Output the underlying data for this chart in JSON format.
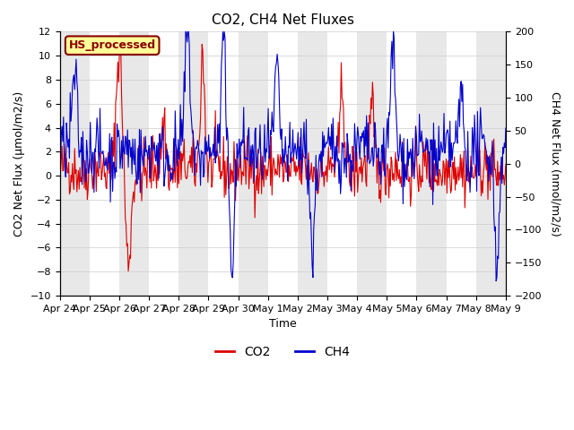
{
  "title": "CO2, CH4 Net Fluxes",
  "xlabel": "Time",
  "ylabel_left": "CO2 Net Flux (μmol/m2/s)",
  "ylabel_right": "CH4 Net Flux (nmol/m2/s)",
  "ylim_left": [
    -10,
    12
  ],
  "ylim_right": [
    -200,
    200
  ],
  "xtick_labels": [
    "Apr 24",
    "Apr 25",
    "Apr 26",
    "Apr 27",
    "Apr 28",
    "Apr 29",
    "Apr 30",
    "May 1",
    "May 2",
    "May 3",
    "May 4",
    "May 5",
    "May 6",
    "May 7",
    "May 8",
    "May 9"
  ],
  "yticks_left": [
    -10,
    -8,
    -6,
    -4,
    -2,
    0,
    2,
    4,
    6,
    8,
    10,
    12
  ],
  "yticks_right": [
    -200,
    -150,
    -100,
    -50,
    0,
    50,
    100,
    150,
    200
  ],
  "co2_color": "#dd0000",
  "ch4_color": "#0000cc",
  "background_color": "#ffffff",
  "band_color": "#e8e8e8",
  "label_box_facecolor": "#ffff99",
  "label_box_edgecolor": "#880000",
  "label_text": "HS_processed",
  "label_text_color": "#880000",
  "legend_co2": "CO2",
  "legend_ch4": "CH4",
  "seed": 42,
  "n_points": 600,
  "days": 15
}
